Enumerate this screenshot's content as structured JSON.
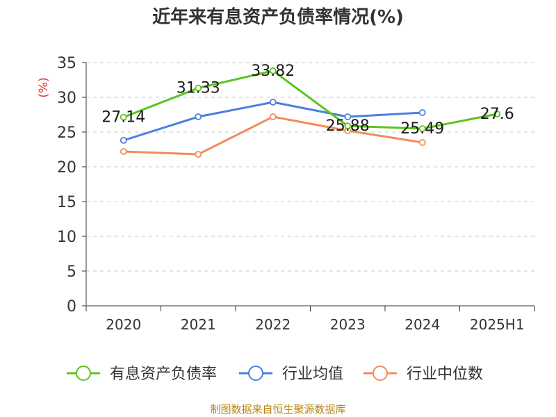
{
  "title": "近年来有息资产负债率情况(%)",
  "source": "制图数据来自恒生聚源数据库",
  "colors": {
    "debt_ratio": "#5cc41e",
    "industry_avg": "#4b7fe0",
    "industry_median": "#f28c5a",
    "ylabel": "#d9322b",
    "axis": "#333333",
    "grid": "#c8c8c8"
  },
  "chart_data": {
    "type": "line",
    "title": "近年来有息资产负债率情况(%)",
    "ylabel": "(%)",
    "xlabel": "",
    "categories": [
      "2020",
      "2021",
      "2022",
      "2023",
      "2024",
      "2025H1"
    ],
    "ylim": [
      0,
      35
    ],
    "yticks": [
      0,
      5,
      10,
      15,
      20,
      25,
      30,
      35
    ],
    "grid": "dashed horizontal",
    "legend": "bottom",
    "series": [
      {
        "name": "有息资产负债率",
        "key": "debt_ratio",
        "values": [
          27.14,
          31.33,
          33.82,
          25.88,
          25.49,
          27.6
        ],
        "labels": [
          "27.14",
          "31.33",
          "33.82",
          "25.88",
          "25.49",
          "27.6"
        ]
      },
      {
        "name": "行业均值",
        "key": "industry_avg",
        "values": [
          23.8,
          27.2,
          29.3,
          27.2,
          27.8,
          null
        ]
      },
      {
        "name": "行业中位数",
        "key": "industry_median",
        "values": [
          22.2,
          21.8,
          27.2,
          25.2,
          23.5,
          null
        ]
      }
    ]
  }
}
